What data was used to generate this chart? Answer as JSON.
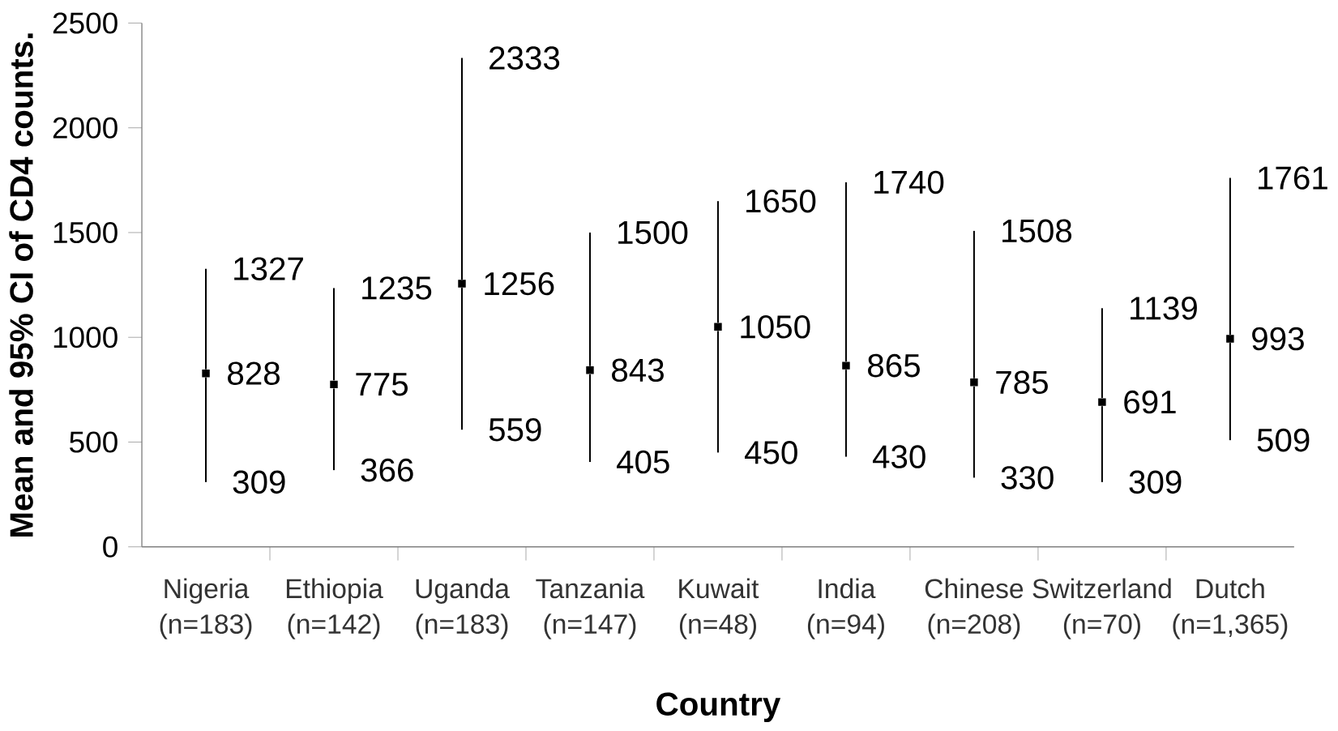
{
  "chart_data": {
    "type": "scatter",
    "xlabel": "Country",
    "ylabel": "Mean and 95% CI of CD4 counts.",
    "categories": [
      "Nigeria (n=183)",
      "Ethiopia (n=142)",
      "Uganda (n=183)",
      "Tanzania (n=147)",
      "Kuwait (n=48)",
      "India (n=94)",
      "Chinese (n=208)",
      "Switzerland (n=70)",
      "Dutch (n=1,365)"
    ],
    "values": [
      828,
      775,
      1256,
      843,
      1050,
      865,
      785,
      691,
      993
    ],
    "errors": [
      [
        309,
        1327
      ],
      [
        366,
        1235
      ],
      [
        559,
        2333
      ],
      [
        405,
        1500
      ],
      [
        450,
        1650
      ],
      [
        430,
        1740
      ],
      [
        330,
        1508
      ],
      [
        309,
        1139
      ],
      [
        509,
        1761
      ]
    ],
    "color": "#000000",
    "marker": "square",
    "data_labels": true,
    "grid": false,
    "ylim": [
      0,
      2500
    ],
    "yticks": [
      0,
      500,
      1000,
      1500,
      2000,
      2500
    ],
    "annotations": [
      {
        "text": "1327",
        "x": "Nigeria (n=183)",
        "y": 1327
      },
      {
        "text": "309",
        "x": "Nigeria (n=183)",
        "y": 309
      },
      {
        "text": "1235",
        "x": "Ethiopia (n=142)",
        "y": 1235
      },
      {
        "text": "366",
        "x": "Ethiopia (n=142)",
        "y": 366
      },
      {
        "text": "2333",
        "x": "Uganda (n=183)",
        "y": 2333
      },
      {
        "text": "559",
        "x": "Uganda (n=183)",
        "y": 559
      },
      {
        "text": "1500",
        "x": "Tanzania (n=147)",
        "y": 1500
      },
      {
        "text": "405",
        "x": "Tanzania (n=147)",
        "y": 405
      },
      {
        "text": "1650",
        "x": "Kuwait (n=48)",
        "y": 1650
      },
      {
        "text": "450",
        "x": "Kuwait (n=48)",
        "y": 450
      },
      {
        "text": "1740",
        "x": "India (n=94)",
        "y": 1740
      },
      {
        "text": "430",
        "x": "India (n=94)",
        "y": 430
      },
      {
        "text": "1508",
        "x": "Chinese (n=208)",
        "y": 1508
      },
      {
        "text": "330",
        "x": "Chinese (n=208)",
        "y": 330
      },
      {
        "text": "1139",
        "x": "Switzerland (n=70)",
        "y": 1139
      },
      {
        "text": "309",
        "x": "Switzerland (n=70)",
        "y": 309
      },
      {
        "text": "1761",
        "x": "Dutch (n=1,365)",
        "y": 1761
      },
      {
        "text": "509",
        "x": "Dutch (n=1,365)",
        "y": 509
      }
    ]
  }
}
